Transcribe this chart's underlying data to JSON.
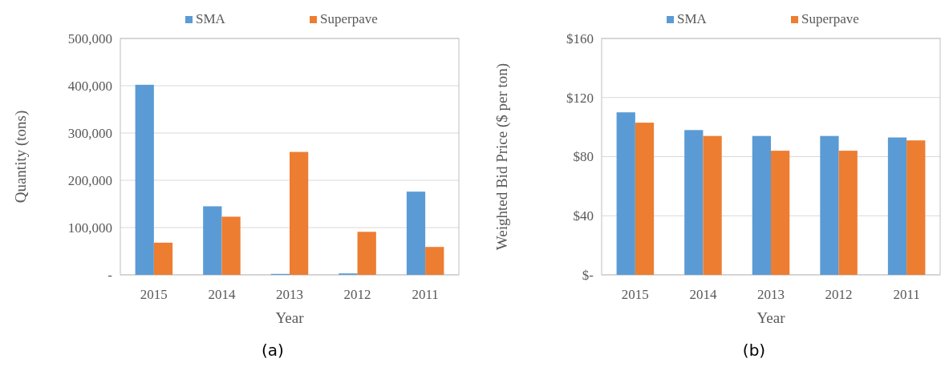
{
  "chart_data": [
    {
      "type": "bar",
      "categories": [
        "2015",
        "2014",
        "2013",
        "2012",
        "2011"
      ],
      "xlabel": "Year",
      "ylabel": "Quantity (tons)",
      "ylim": [
        0,
        500000
      ],
      "yticks": [
        {
          "value": 0,
          "label": "-"
        },
        {
          "value": 100000,
          "label": "100,000"
        },
        {
          "value": 200000,
          "label": "200,000"
        },
        {
          "value": 300000,
          "label": "300,000"
        },
        {
          "value": 400000,
          "label": "400,000"
        },
        {
          "value": 500000,
          "label": "500,000"
        }
      ],
      "grid": "y",
      "legend": "top",
      "annotations": [
        "(a)"
      ],
      "series": [
        {
          "name": "SMA",
          "color": "#5b9bd5",
          "values": [
            402000,
            145000,
            2000,
            3000,
            176000
          ]
        },
        {
          "name": "Superpave",
          "color": "#ed7d31",
          "values": [
            68000,
            123000,
            260000,
            91000,
            59000
          ]
        }
      ]
    },
    {
      "type": "bar",
      "categories": [
        "2015",
        "2014",
        "2013",
        "2012",
        "2011"
      ],
      "xlabel": "Year",
      "ylabel": "Weighted Bid Price ($ per ton)",
      "ylim": [
        0,
        160
      ],
      "yticks": [
        {
          "value": 0,
          "label": "$-"
        },
        {
          "value": 40,
          "label": "$40"
        },
        {
          "value": 80,
          "label": "$80"
        },
        {
          "value": 120,
          "label": "$120"
        },
        {
          "value": 160,
          "label": "$160"
        }
      ],
      "grid": "y",
      "legend": "top",
      "annotations": [
        "(b)"
      ],
      "series": [
        {
          "name": "SMA",
          "color": "#5b9bd5",
          "values": [
            110,
            98,
            94,
            94,
            93
          ]
        },
        {
          "name": "Superpave",
          "color": "#ed7d31",
          "values": [
            103,
            94,
            84,
            84,
            91
          ]
        }
      ]
    }
  ]
}
